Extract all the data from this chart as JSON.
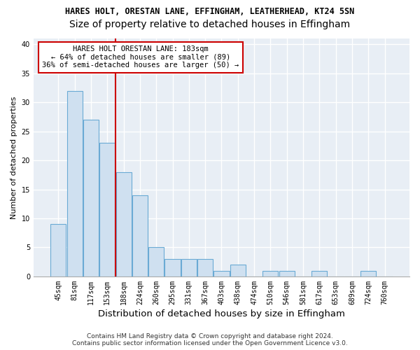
{
  "title1": "HARES HOLT, ORESTAN LANE, EFFINGHAM, LEATHERHEAD, KT24 5SN",
  "title2": "Size of property relative to detached houses in Effingham",
  "xlabel": "Distribution of detached houses by size in Effingham",
  "ylabel": "Number of detached properties",
  "categories": [
    "45sqm",
    "81sqm",
    "117sqm",
    "153sqm",
    "188sqm",
    "224sqm",
    "260sqm",
    "295sqm",
    "331sqm",
    "367sqm",
    "403sqm",
    "438sqm",
    "474sqm",
    "510sqm",
    "546sqm",
    "581sqm",
    "617sqm",
    "653sqm",
    "689sqm",
    "724sqm",
    "760sqm"
  ],
  "values": [
    9,
    32,
    27,
    23,
    18,
    14,
    5,
    3,
    3,
    3,
    1,
    2,
    0,
    1,
    1,
    0,
    1,
    0,
    0,
    1,
    0
  ],
  "bar_color": "#cfe0f0",
  "bar_edgecolor": "#6aaad4",
  "bar_linewidth": 0.8,
  "vline_idx": 4,
  "vline_color": "#cc0000",
  "annotation_text": "HARES HOLT ORESTAN LANE: 183sqm\n← 64% of detached houses are smaller (89)\n36% of semi-detached houses are larger (50) →",
  "annotation_box_color": "#ffffff",
  "annotation_box_edgecolor": "#cc0000",
  "ylim": [
    0,
    41
  ],
  "yticks": [
    0,
    5,
    10,
    15,
    20,
    25,
    30,
    35,
    40
  ],
  "footer1": "Contains HM Land Registry data © Crown copyright and database right 2024.",
  "footer2": "Contains public sector information licensed under the Open Government Licence v3.0.",
  "bg_color": "#ffffff",
  "plot_bg_color": "#e8eef5",
  "grid_color": "#ffffff",
  "title1_fontsize": 8.5,
  "title2_fontsize": 10,
  "xlabel_fontsize": 9.5,
  "ylabel_fontsize": 8,
  "tick_fontsize": 7,
  "annotation_fontsize": 7.5,
  "footer_fontsize": 6.5
}
